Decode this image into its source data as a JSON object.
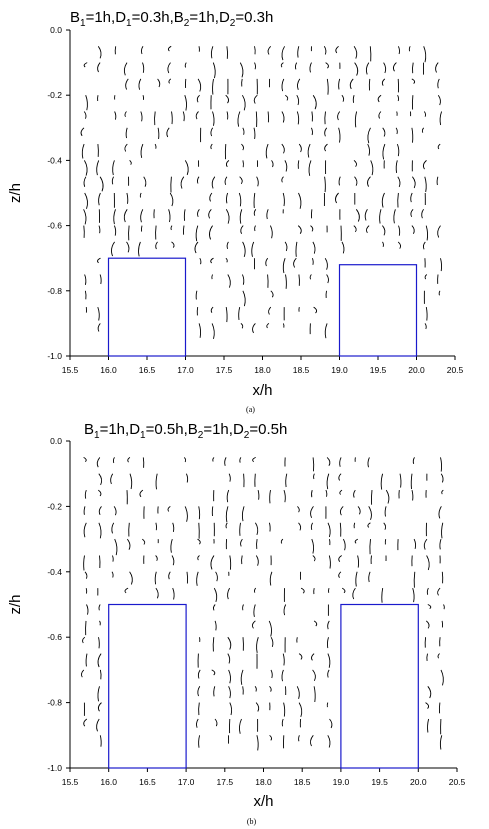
{
  "chart_data": [
    {
      "type": "vector-field",
      "panel_label": "(a)",
      "title_parts": {
        "b1": "1h",
        "d1": "0.3h",
        "b2": "1h",
        "d2": "0.3h"
      },
      "xlabel": "x/h",
      "ylabel": "z/h",
      "xlim": [
        15.5,
        20.5
      ],
      "ylim": [
        -1.0,
        0.0
      ],
      "xticks": [
        "15.5",
        "16.0",
        "16.5",
        "17.0",
        "17.5",
        "18.0",
        "18.5",
        "19.0",
        "19.5",
        "20.0",
        "20.5"
      ],
      "yticks": [
        "0.0",
        "-0.2",
        "-0.4",
        "-0.6",
        "-0.8",
        "-1.0"
      ],
      "obstacles": [
        {
          "x0": 16.0,
          "x1": 17.0,
          "top": -0.7,
          "bottom": -1.0
        },
        {
          "x0": 19.0,
          "x1": 20.0,
          "top": -0.72,
          "bottom": -1.0
        }
      ],
      "obstacle_color": "#1a1acc",
      "vector_color": "#000000"
    },
    {
      "type": "vector-field",
      "panel_label": "(b)",
      "title_parts": {
        "b1": "1h",
        "d1": "0.5h",
        "b2": "1h",
        "d2": "0.5h"
      },
      "xlabel": "x/h",
      "ylabel": "z/h",
      "xlim": [
        15.5,
        20.5
      ],
      "ylim": [
        -1.0,
        0.0
      ],
      "xticks": [
        "15.5",
        "16.0",
        "16.5",
        "17.0",
        "17.5",
        "18.0",
        "18.5",
        "19.0",
        "19.5",
        "20.0",
        "20.5"
      ],
      "yticks": [
        "0.0",
        "-0.2",
        "-0.4",
        "-0.6",
        "-0.8",
        "-1.0"
      ],
      "obstacles": [
        {
          "x0": 16.0,
          "x1": 17.0,
          "top": -0.5,
          "bottom": -1.0
        },
        {
          "x0": 19.0,
          "x1": 20.0,
          "top": -0.5,
          "bottom": -1.0
        }
      ],
      "obstacle_color": "#1a1acc",
      "vector_color": "#000000"
    }
  ]
}
